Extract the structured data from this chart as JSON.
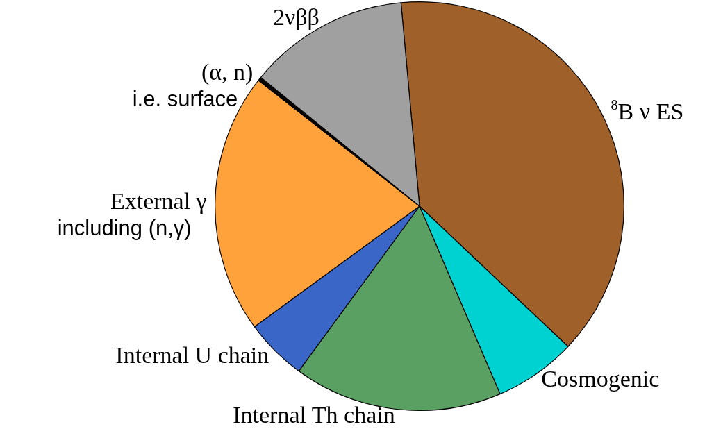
{
  "chart_data": {
    "type": "pie",
    "categories": [
      "$^{8}$B ν ES",
      "Cosmogenic",
      "Internal Th chain",
      "Internal U chain",
      "External γ\nincluding (n,γ)",
      "(α, n)\ni.e. surface",
      "2νββ"
    ],
    "values": [
      38.5,
      6.5,
      16.5,
      4.9,
      20.6,
      0.3,
      12.7
    ],
    "colors": [
      "#a0602a",
      "#00d2d2",
      "#5aa062",
      "#3a66c8",
      "#ffa23c",
      "#000000",
      "#a0a0a0"
    ],
    "legend": false
  }
}
